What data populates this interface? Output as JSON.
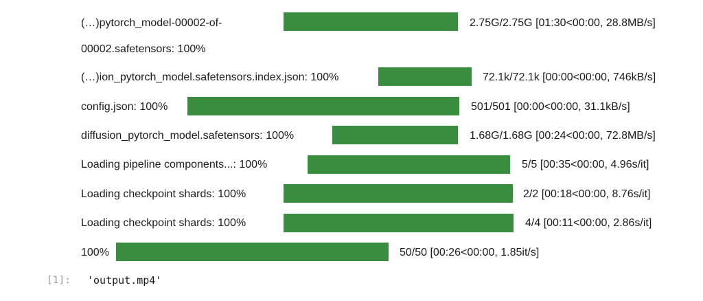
{
  "progress_rows": [
    {
      "desc_lines": [
        "(…)pytorch_model-00002-of-",
        "00002.safetensors: 100%"
      ],
      "progress": 1.0,
      "stats": "2.75G/2.75G [01:30<00:00, 28.8MB/s]"
    },
    {
      "desc_lines": [
        "(…)ion_pytorch_model.safetensors.index.json: 100%"
      ],
      "progress": 1.0,
      "stats": "72.1k/72.1k [00:00<00:00, 746kB/s]"
    },
    {
      "desc_lines": [
        "config.json: 100%"
      ],
      "progress": 1.0,
      "stats": "501/501 [00:00<00:00, 31.1kB/s]"
    },
    {
      "desc_lines": [
        "diffusion_pytorch_model.safetensors: 100%"
      ],
      "progress": 1.0,
      "stats": "1.68G/1.68G [00:24<00:00, 72.8MB/s]"
    },
    {
      "desc_lines": [
        "Loading pipeline components...: 100%"
      ],
      "progress": 1.0,
      "stats": "5/5 [00:35<00:00, 4.96s/it]"
    },
    {
      "desc_lines": [
        "Loading checkpoint shards: 100%"
      ],
      "progress": 1.0,
      "stats": "2/2 [00:18<00:00, 8.76s/it]"
    },
    {
      "desc_lines": [
        "Loading checkpoint shards: 100%"
      ],
      "progress": 1.0,
      "stats": "4/4 [00:11<00:00, 2.86s/it]"
    },
    {
      "desc_lines": [
        "100%"
      ],
      "progress": 1.0,
      "stats": "50/50 [00:26<00:00, 1.85it/s]"
    }
  ],
  "bar_color": "#3a8c3f",
  "output_cell": {
    "prompt": "[1]:",
    "value": "'output.mp4'"
  }
}
